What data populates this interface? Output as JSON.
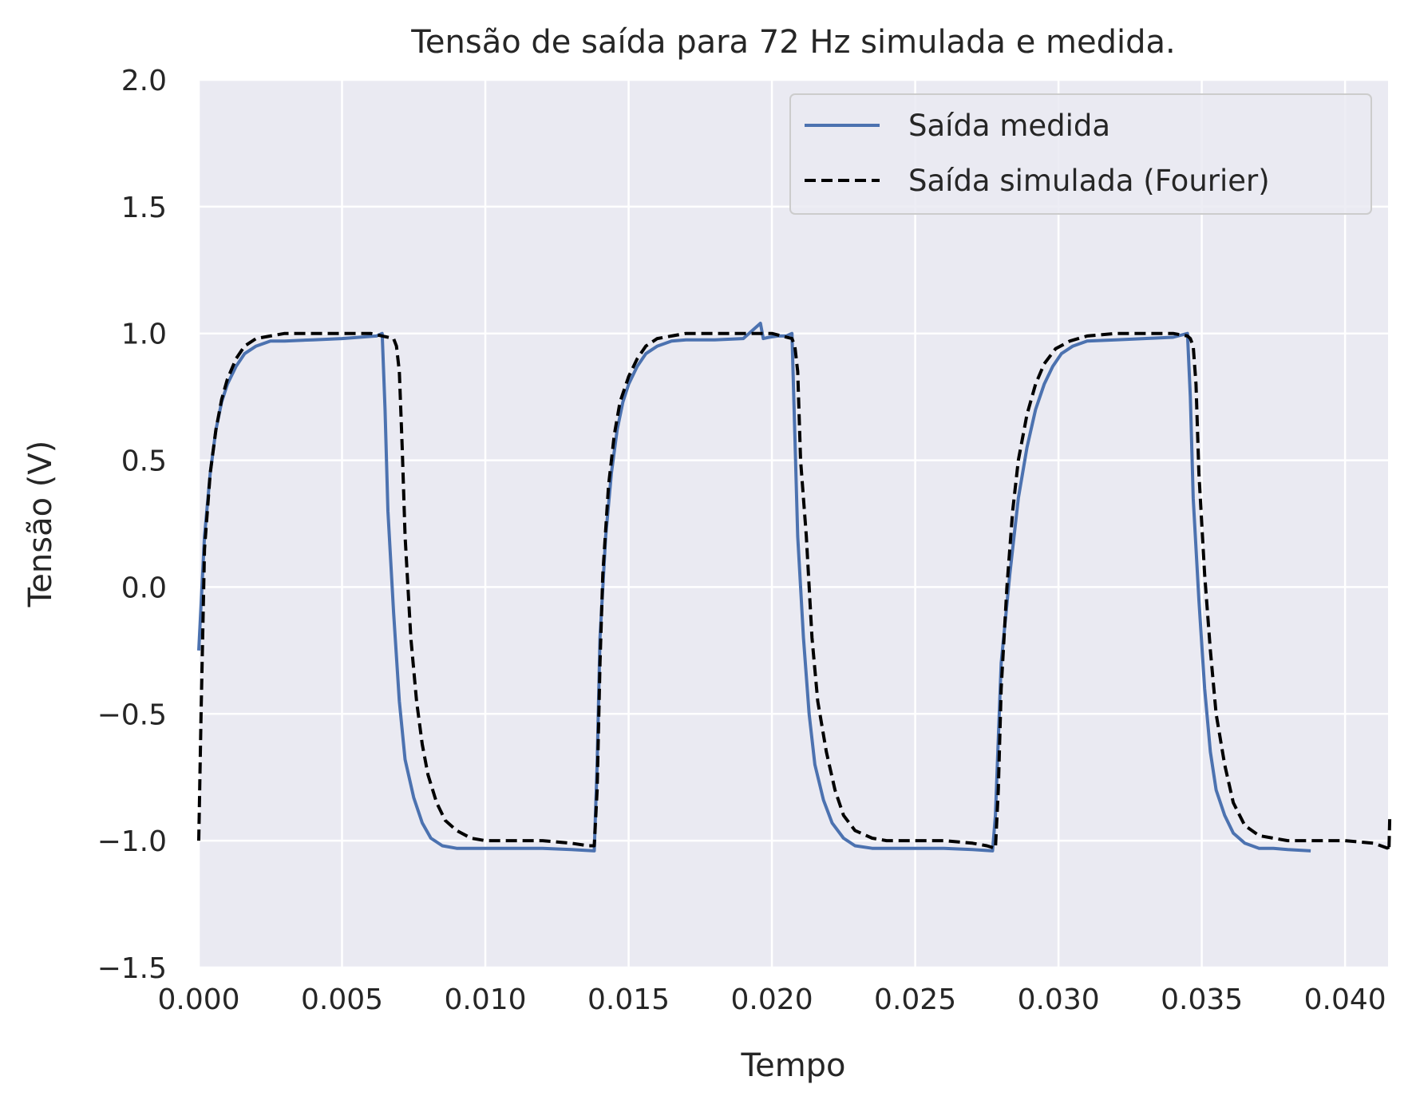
{
  "chart_data": {
    "type": "line",
    "title": "Tensão de saída para 72 Hz simulada e medida.",
    "xlabel": "Tempo",
    "ylabel": "Tensão (V)",
    "xlim": [
      0.0,
      0.0415
    ],
    "ylim": [
      -1.5,
      2.0
    ],
    "xticks": [
      "0.000",
      "0.005",
      "0.010",
      "0.015",
      "0.020",
      "0.025",
      "0.030",
      "0.035",
      "0.040"
    ],
    "yticks": [
      "−1.5",
      "−1.0",
      "−0.5",
      "0.0",
      "0.5",
      "1.0",
      "1.5",
      "2.0"
    ],
    "grid": true,
    "legend_position": "top-right",
    "series": [
      {
        "name": "Saída medida",
        "color": "#4c72b0",
        "style": "solid",
        "x": [
          0.0,
          0.0002,
          0.0004,
          0.0006,
          0.0008,
          0.001,
          0.0013,
          0.0016,
          0.002,
          0.0025,
          0.003,
          0.004,
          0.005,
          0.0062,
          0.0064,
          0.0065,
          0.0066,
          0.0068,
          0.007,
          0.0072,
          0.0075,
          0.0078,
          0.0081,
          0.0085,
          0.009,
          0.0095,
          0.01,
          0.011,
          0.012,
          0.013,
          0.0138,
          0.0139,
          0.014,
          0.0142,
          0.0144,
          0.0146,
          0.0148,
          0.015,
          0.0153,
          0.0156,
          0.016,
          0.0165,
          0.017,
          0.018,
          0.019,
          0.0196,
          0.0197,
          0.0199,
          0.0202,
          0.0205,
          0.0207,
          0.0208,
          0.0209,
          0.0211,
          0.0213,
          0.0215,
          0.0218,
          0.0221,
          0.0225,
          0.0229,
          0.0235,
          0.024,
          0.025,
          0.026,
          0.027,
          0.0277,
          0.0278,
          0.0279,
          0.028,
          0.0283,
          0.0286,
          0.0289,
          0.0292,
          0.0295,
          0.0298,
          0.0301,
          0.0305,
          0.031,
          0.032,
          0.033,
          0.034,
          0.0345,
          0.0346,
          0.0347,
          0.0349,
          0.0351,
          0.0353,
          0.0355,
          0.0358,
          0.0361,
          0.0365,
          0.037,
          0.0375,
          0.038,
          0.0388
        ],
        "y": [
          -0.25,
          0.2,
          0.45,
          0.62,
          0.73,
          0.8,
          0.87,
          0.92,
          0.95,
          0.97,
          0.97,
          0.975,
          0.98,
          0.99,
          1.0,
          0.7,
          0.3,
          -0.1,
          -0.45,
          -0.68,
          -0.83,
          -0.93,
          -0.99,
          -1.02,
          -1.03,
          -1.03,
          -1.03,
          -1.03,
          -1.03,
          -1.035,
          -1.04,
          -0.7,
          -0.2,
          0.2,
          0.45,
          0.62,
          0.73,
          0.8,
          0.87,
          0.92,
          0.95,
          0.97,
          0.975,
          0.975,
          0.98,
          1.04,
          0.98,
          0.985,
          0.99,
          0.99,
          1.0,
          0.6,
          0.2,
          -0.2,
          -0.5,
          -0.7,
          -0.84,
          -0.93,
          -0.99,
          -1.02,
          -1.03,
          -1.03,
          -1.03,
          -1.03,
          -1.035,
          -1.04,
          -0.9,
          -0.6,
          -0.3,
          0.05,
          0.35,
          0.55,
          0.7,
          0.8,
          0.87,
          0.92,
          0.95,
          0.97,
          0.975,
          0.98,
          0.985,
          1.0,
          0.75,
          0.35,
          -0.05,
          -0.4,
          -0.65,
          -0.8,
          -0.9,
          -0.97,
          -1.01,
          -1.03,
          -1.03,
          -1.035,
          -1.04
        ]
      },
      {
        "name": "Saída simulada (Fourier)",
        "color": "#000000",
        "style": "dashed",
        "x": [
          0.0,
          8e-05,
          0.0002,
          0.0004,
          0.0006,
          0.0008,
          0.001,
          0.0013,
          0.0016,
          0.002,
          0.0025,
          0.003,
          0.004,
          0.005,
          0.006,
          0.0068,
          0.0069,
          0.007,
          0.0071,
          0.0072,
          0.0074,
          0.0076,
          0.0078,
          0.008,
          0.0083,
          0.0086,
          0.009,
          0.0095,
          0.01,
          0.011,
          0.012,
          0.013,
          0.0136,
          0.0138,
          0.0139,
          0.014,
          0.0141,
          0.0143,
          0.0145,
          0.0147,
          0.015,
          0.0153,
          0.0156,
          0.016,
          0.0165,
          0.017,
          0.018,
          0.019,
          0.02,
          0.0207,
          0.0208,
          0.0209,
          0.021,
          0.0212,
          0.0214,
          0.0216,
          0.0219,
          0.0222,
          0.0225,
          0.0229,
          0.0235,
          0.024,
          0.025,
          0.026,
          0.027,
          0.0275,
          0.0278,
          0.0279,
          0.028,
          0.0282,
          0.0284,
          0.0286,
          0.0289,
          0.0292,
          0.0295,
          0.0299,
          0.0304,
          0.031,
          0.032,
          0.033,
          0.034,
          0.0345,
          0.0346,
          0.0347,
          0.0348,
          0.0349,
          0.0351,
          0.0353,
          0.0355,
          0.0358,
          0.0361,
          0.0365,
          0.037,
          0.0375,
          0.038,
          0.039,
          0.04,
          0.041,
          0.0415,
          0.04153,
          0.04156
        ],
        "y": [
          -1.0,
          -0.5,
          0.15,
          0.45,
          0.62,
          0.74,
          0.82,
          0.9,
          0.95,
          0.98,
          0.99,
          1.0,
          1.0,
          1.0,
          1.0,
          0.98,
          0.95,
          0.85,
          0.55,
          0.2,
          -0.2,
          -0.45,
          -0.62,
          -0.74,
          -0.85,
          -0.92,
          -0.96,
          -0.99,
          -1.0,
          -1.0,
          -1.0,
          -1.01,
          -1.02,
          -1.02,
          -0.8,
          -0.3,
          0.05,
          0.4,
          0.6,
          0.73,
          0.83,
          0.9,
          0.95,
          0.98,
          0.99,
          1.0,
          1.0,
          1.0,
          1.0,
          0.98,
          0.95,
          0.85,
          0.5,
          0.2,
          -0.2,
          -0.45,
          -0.65,
          -0.8,
          -0.9,
          -0.96,
          -0.99,
          -1.0,
          -1.0,
          -1.0,
          -1.01,
          -1.02,
          -1.03,
          -0.8,
          -0.4,
          0.0,
          0.3,
          0.5,
          0.68,
          0.8,
          0.88,
          0.94,
          0.97,
          0.99,
          1.0,
          1.0,
          1.0,
          0.99,
          0.98,
          0.95,
          0.8,
          0.45,
          0.05,
          -0.25,
          -0.5,
          -0.7,
          -0.85,
          -0.94,
          -0.98,
          -0.99,
          -1.0,
          -1.0,
          -1.0,
          -1.01,
          -1.03,
          -1.04,
          -0.9
        ]
      }
    ]
  }
}
